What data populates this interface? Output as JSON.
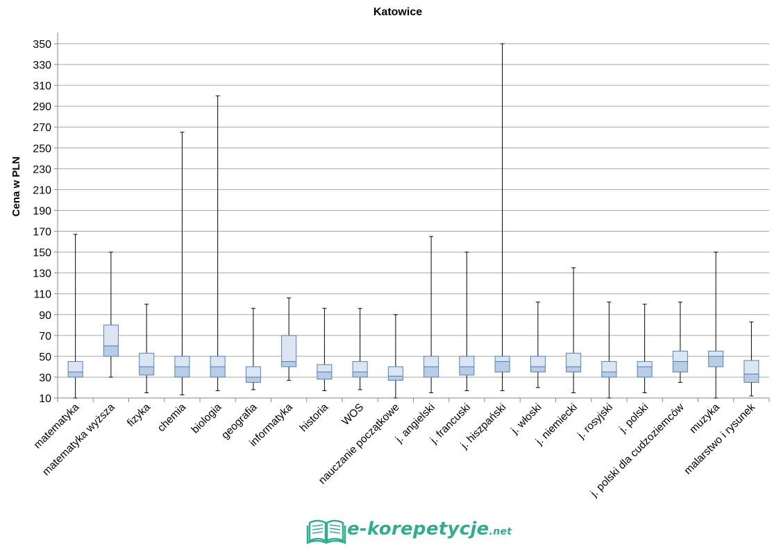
{
  "chart_data": {
    "type": "box",
    "title": "Katowice",
    "ylabel": "Cena w PLN",
    "xlabel": "",
    "ylim": [
      10,
      350
    ],
    "yticks": [
      10,
      30,
      50,
      70,
      90,
      110,
      130,
      150,
      170,
      190,
      210,
      230,
      250,
      270,
      290,
      310,
      330,
      350
    ],
    "grid": true,
    "legend": "none",
    "colors": {
      "box_fill": "#dce6f2",
      "box_stroke": "#4f81bd",
      "lower_fill": "#b8cce4",
      "whisker": "#000000",
      "grid": "#a6a6a6"
    },
    "categories": [
      "matematyka",
      "matematyka wyższa",
      "fizyka",
      "chemia",
      "biologia",
      "geografia",
      "informatyka",
      "historia",
      "WOS",
      "nauczanie początkowe",
      "j. angielski",
      "j. francuski",
      "j. hiszpański",
      "j. włoski",
      "j. niemiecki",
      "j. rosyjski",
      "j. polski",
      "j. polski dla cudzoziemców",
      "muzyka",
      "malarstwo i rysunek"
    ],
    "boxes": [
      {
        "min": 10,
        "q1": 30,
        "median": 35,
        "q3": 45,
        "max": 167
      },
      {
        "min": 30,
        "q1": 50,
        "median": 60,
        "q3": 80,
        "max": 150
      },
      {
        "min": 15,
        "q1": 32,
        "median": 40,
        "q3": 53,
        "max": 100
      },
      {
        "min": 13,
        "q1": 30,
        "median": 40,
        "q3": 50,
        "max": 265
      },
      {
        "min": 17,
        "q1": 30,
        "median": 40,
        "q3": 50,
        "max": 300
      },
      {
        "min": 18,
        "q1": 25,
        "median": 30,
        "q3": 40,
        "max": 96
      },
      {
        "min": 27,
        "q1": 40,
        "median": 45,
        "q3": 70,
        "max": 106
      },
      {
        "min": 17,
        "q1": 28,
        "median": 35,
        "q3": 42,
        "max": 96
      },
      {
        "min": 18,
        "q1": 30,
        "median": 35,
        "q3": 45,
        "max": 96
      },
      {
        "min": 10,
        "q1": 27,
        "median": 31,
        "q3": 40,
        "max": 90
      },
      {
        "min": 15,
        "q1": 30,
        "median": 40,
        "q3": 50,
        "max": 165
      },
      {
        "min": 17,
        "q1": 32,
        "median": 40,
        "q3": 50,
        "max": 150
      },
      {
        "min": 17,
        "q1": 35,
        "median": 45,
        "q3": 50,
        "max": 350
      },
      {
        "min": 20,
        "q1": 35,
        "median": 40,
        "q3": 50,
        "max": 102
      },
      {
        "min": 15,
        "q1": 35,
        "median": 40,
        "q3": 53,
        "max": 135
      },
      {
        "min": 10,
        "q1": 30,
        "median": 35,
        "q3": 45,
        "max": 102
      },
      {
        "min": 15,
        "q1": 30,
        "median": 40,
        "q3": 45,
        "max": 100
      },
      {
        "min": 25,
        "q1": 35,
        "median": 45,
        "q3": 55,
        "max": 102
      },
      {
        "min": 10,
        "q1": 40,
        "median": 50,
        "q3": 55,
        "max": 150
      },
      {
        "min": 12,
        "q1": 25,
        "median": 33,
        "q3": 46,
        "max": 83
      }
    ]
  },
  "logo": {
    "text": "e-korepetycje",
    "suffix": ".net",
    "icon": "open-book-icon"
  }
}
